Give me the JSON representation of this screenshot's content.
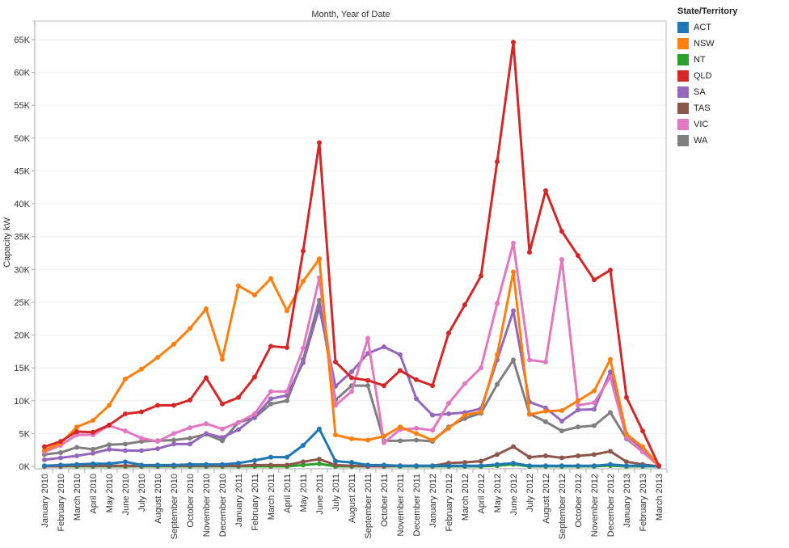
{
  "chart_data": {
    "type": "line",
    "title": "Month, Year of Date",
    "xlabel": "",
    "ylabel": "Capacity kW",
    "ylim": [
      0,
      67000
    ],
    "yticks": [
      0,
      5000,
      10000,
      15000,
      20000,
      25000,
      30000,
      35000,
      40000,
      45000,
      50000,
      55000,
      60000,
      65000
    ],
    "ytick_labels": [
      "0K",
      "5K",
      "10K",
      "15K",
      "20K",
      "25K",
      "30K",
      "35K",
      "40K",
      "45K",
      "50K",
      "55K",
      "60K",
      "65K"
    ],
    "grid": true,
    "legend_title": "State/Territory",
    "legend_position": "right",
    "categories": [
      "January 2010",
      "February 2010",
      "March 2010",
      "April 2010",
      "May 2010",
      "June 2010",
      "July 2010",
      "August 2010",
      "September 2010",
      "October 2010",
      "November 2010",
      "December 2010",
      "January 2011",
      "February 2011",
      "March 2011",
      "April 2011",
      "May 2011",
      "June 2011",
      "July 2011",
      "August 2011",
      "September 2011",
      "October 2011",
      "November 2011",
      "December 2011",
      "January 2012",
      "February 2012",
      "March 2012",
      "April 2012",
      "May 2012",
      "June 2012",
      "July 2012",
      "August 2012",
      "September 2012",
      "October 2012",
      "November 2012",
      "December 2012",
      "January 2013",
      "February 2013",
      "March 2013"
    ],
    "series": [
      {
        "name": "ACT",
        "color": "#1f77b4",
        "values": [
          100,
          200,
          300,
          400,
          400,
          700,
          200,
          200,
          200,
          300,
          300,
          300,
          500,
          900,
          1400,
          1400,
          3200,
          5700,
          800,
          600,
          200,
          200,
          100,
          100,
          100,
          100,
          100,
          100,
          300,
          500,
          100,
          100,
          100,
          100,
          100,
          300,
          100,
          100,
          0
        ]
      },
      {
        "name": "NSW",
        "color": "#ff7f0e",
        "values": [
          2500,
          3500,
          6000,
          7000,
          9300,
          13300,
          14800,
          16600,
          18600,
          21000,
          24000,
          16300,
          27500,
          26100,
          28600,
          23700,
          28200,
          31600,
          4800,
          4200,
          4000,
          4600,
          6000,
          5000,
          4000,
          5800,
          7800,
          8300,
          17000,
          29600,
          7900,
          8400,
          8500,
          10000,
          11500,
          16300,
          4900,
          3000,
          100
        ]
      },
      {
        "name": "NT",
        "color": "#2ca02c",
        "values": [
          0,
          0,
          0,
          0,
          0,
          0,
          0,
          0,
          0,
          0,
          0,
          0,
          0,
          0,
          0,
          0,
          200,
          400,
          0,
          0,
          0,
          0,
          0,
          0,
          0,
          0,
          0,
          0,
          100,
          300,
          0,
          0,
          0,
          0,
          0,
          100,
          0,
          0,
          0
        ]
      },
      {
        "name": "QLD",
        "color": "#d62728",
        "values": [
          3000,
          3800,
          5300,
          5200,
          6300,
          8000,
          8300,
          9300,
          9300,
          10100,
          13500,
          9500,
          10500,
          13600,
          18300,
          18100,
          32800,
          49300,
          15900,
          13500,
          13100,
          12300,
          14600,
          13200,
          12300,
          20300,
          24600,
          29000,
          46400,
          64600,
          32600,
          42000,
          35800,
          32100,
          28400,
          29900,
          10500,
          5400,
          100
        ]
      },
      {
        "name": "SA",
        "color": "#9467bd",
        "values": [
          1000,
          1300,
          1600,
          2000,
          2600,
          2400,
          2400,
          2700,
          3400,
          3400,
          5000,
          4400,
          5600,
          7500,
          10300,
          10800,
          15800,
          24200,
          12200,
          14400,
          17200,
          18200,
          17000,
          10300,
          7800,
          8000,
          8200,
          8800,
          16200,
          23700,
          9800,
          8900,
          6900,
          8600,
          8700,
          14400,
          4900,
          2600,
          100
        ]
      },
      {
        "name": "TAS",
        "color": "#8c564b",
        "values": [
          0,
          0,
          100,
          100,
          100,
          100,
          100,
          100,
          100,
          100,
          100,
          100,
          100,
          200,
          200,
          200,
          700,
          1100,
          200,
          100,
          0,
          0,
          100,
          100,
          100,
          500,
          600,
          800,
          1800,
          3000,
          1400,
          1600,
          1300,
          1600,
          1800,
          2300,
          700,
          300,
          0
        ]
      },
      {
        "name": "VIC",
        "color": "#e377c2",
        "values": [
          2200,
          3200,
          4800,
          4800,
          6200,
          5400,
          4300,
          3800,
          5000,
          5900,
          6500,
          5700,
          6700,
          8000,
          11400,
          11400,
          18000,
          28700,
          9300,
          11400,
          19500,
          3600,
          5600,
          5800,
          5500,
          9600,
          12600,
          15000,
          24800,
          34000,
          16200,
          15900,
          31500,
          9300,
          9700,
          13600,
          4400,
          2200,
          100
        ]
      },
      {
        "name": "WA",
        "color": "#7f7f7f",
        "values": [
          1800,
          2100,
          2900,
          2600,
          3300,
          3400,
          3800,
          3900,
          4000,
          4300,
          4900,
          3900,
          6700,
          7400,
          9500,
          10000,
          16300,
          25300,
          10100,
          12300,
          12300,
          3900,
          3900,
          4000,
          3800,
          6000,
          7300,
          8100,
          12500,
          16200,
          8000,
          6800,
          5400,
          6000,
          6200,
          8200,
          4200,
          2200,
          100
        ]
      }
    ]
  }
}
